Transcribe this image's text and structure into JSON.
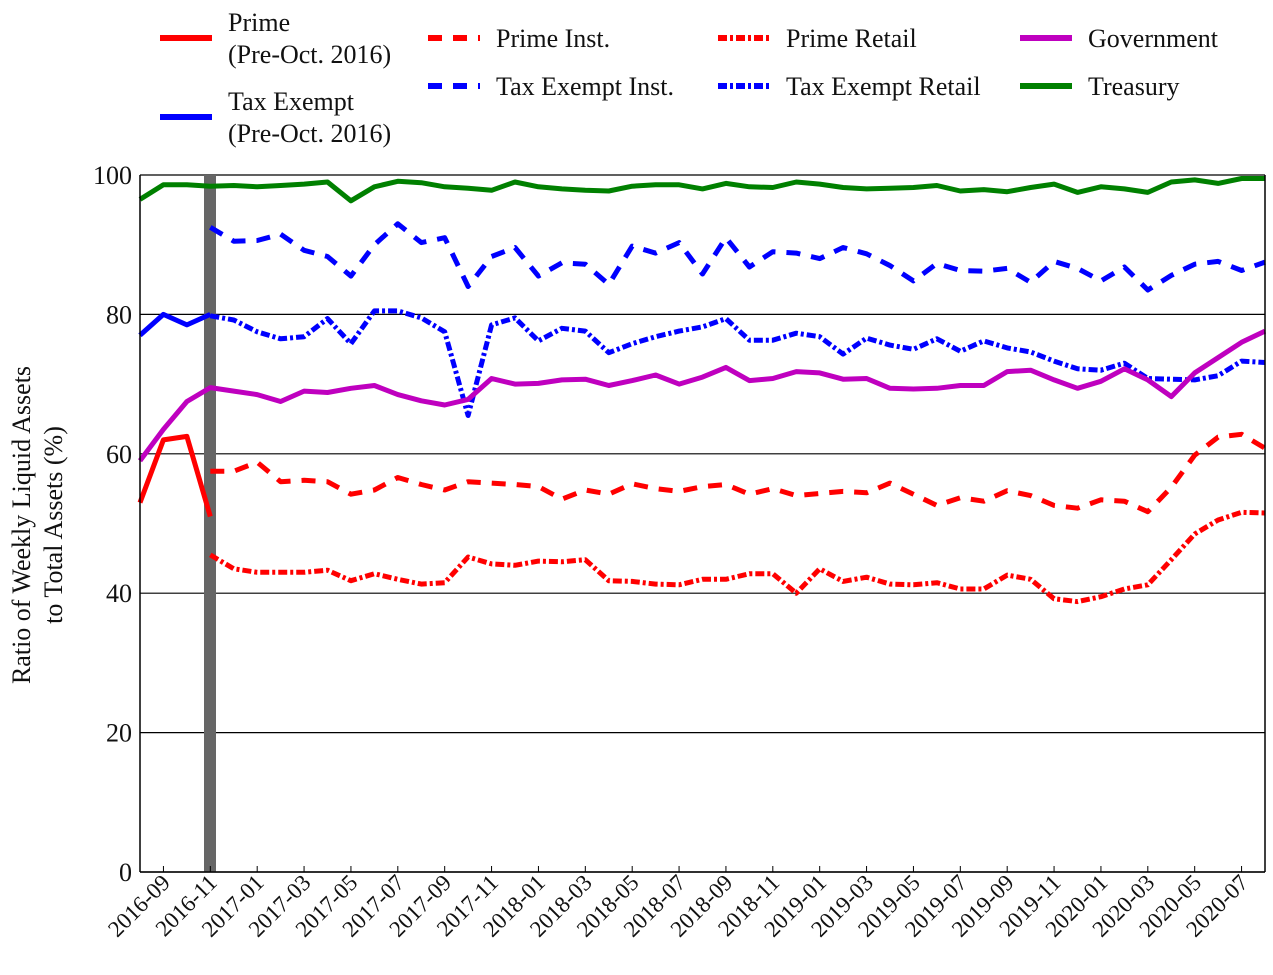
{
  "chart_data": {
    "type": "line",
    "ylabel": "Ratio of Weekly Liquid Assets\nto Total Assets (%)",
    "categories": [
      null,
      "2016-09",
      null,
      "2016-11",
      null,
      "2017-01",
      null,
      "2017-03",
      null,
      "2017-05",
      null,
      "2017-07",
      null,
      "2017-09",
      null,
      "2017-11",
      null,
      "2018-01",
      null,
      "2018-03",
      null,
      "2018-05",
      null,
      "2018-07",
      null,
      "2018-09",
      null,
      "2018-11",
      null,
      "2019-01",
      null,
      "2019-03",
      null,
      "2019-05",
      null,
      "2019-07",
      null,
      "2019-09",
      null,
      "2019-11",
      null,
      "2020-01",
      null,
      "2020-03",
      null,
      "2020-05",
      null,
      "2020-07",
      null
    ],
    "ylim": [
      0,
      100
    ],
    "yticks": [
      0,
      20,
      40,
      60,
      80,
      100
    ],
    "grid": true,
    "series": [
      {
        "name": "Prime\n(Pre-Oct. 2016)",
        "color": "#ff0000",
        "dash": "solid",
        "values": [
          53,
          62,
          62.5,
          51,
          null,
          null,
          null,
          null,
          null,
          null,
          null,
          null,
          null,
          null,
          null,
          null,
          null,
          null,
          null,
          null,
          null,
          null,
          null,
          null,
          null,
          null,
          null,
          null,
          null,
          null,
          null,
          null,
          null,
          null,
          null,
          null,
          null,
          null,
          null,
          null,
          null,
          null,
          null,
          null,
          null,
          null,
          null,
          null,
          null
        ]
      },
      {
        "name": "Tax Exempt\n(Pre-Oct. 2016)",
        "color": "#0000ff",
        "dash": "solid",
        "values": [
          77,
          80,
          78.5,
          80,
          null,
          null,
          null,
          null,
          null,
          null,
          null,
          null,
          null,
          null,
          null,
          null,
          null,
          null,
          null,
          null,
          null,
          null,
          null,
          null,
          null,
          null,
          null,
          null,
          null,
          null,
          null,
          null,
          null,
          null,
          null,
          null,
          null,
          null,
          null,
          null,
          null,
          null,
          null,
          null,
          null,
          null,
          null,
          null,
          null
        ]
      },
      {
        "name": "Prime Inst.",
        "color": "#ff0000",
        "dash": "dashed",
        "values": [
          null,
          null,
          null,
          57.5,
          57.5,
          58.8,
          56,
          56.2,
          56,
          54.2,
          54.8,
          56.6,
          55.6,
          54.8,
          56,
          55.8,
          55.6,
          55.3,
          53.5,
          54.8,
          54.2,
          55.7,
          55,
          54.6,
          55.3,
          55.6,
          54.2,
          55,
          54,
          54.3,
          54.6,
          54.4,
          55.8,
          54.2,
          52.6,
          53.7,
          53.2,
          54.7,
          54,
          52.6,
          52.2,
          53.4,
          53.2,
          51.7,
          55.2,
          59.8,
          62.4,
          62.8,
          60.8
        ]
      },
      {
        "name": "Tax Exempt Inst.",
        "color": "#0000ff",
        "dash": "dashed",
        "values": [
          null,
          null,
          null,
          92.5,
          90.5,
          90.6,
          91.5,
          89.2,
          88.3,
          85.5,
          90,
          93,
          90.3,
          91,
          84,
          88.3,
          89.6,
          85.5,
          87.4,
          87.2,
          84.3,
          89.8,
          88.8,
          90.3,
          85.8,
          91,
          86.8,
          89,
          88.8,
          88,
          89.6,
          88.7,
          87,
          84.8,
          87.3,
          86.3,
          86.2,
          86.6,
          84.6,
          87.6,
          86.6,
          84.8,
          86.8,
          83.5,
          85.6,
          87.2,
          87.6,
          86.3,
          87.5
        ]
      },
      {
        "name": "Prime Retail",
        "color": "#ff0000",
        "dash": "dashdot",
        "values": [
          null,
          null,
          null,
          45.5,
          43.5,
          43,
          43,
          43,
          43.3,
          41.8,
          42.8,
          42,
          41.3,
          41.5,
          45.2,
          44.2,
          44,
          44.6,
          44.5,
          44.8,
          41.8,
          41.7,
          41.3,
          41.2,
          42,
          42,
          42.8,
          42.8,
          40,
          43.5,
          41.7,
          42.3,
          41.3,
          41.2,
          41.5,
          40.6,
          40.6,
          42.6,
          42,
          39.2,
          38.8,
          39.5,
          40.6,
          41.2,
          44.8,
          48.5,
          50.5,
          51.6,
          51.5
        ]
      },
      {
        "name": "Tax Exempt Retail",
        "color": "#0000ff",
        "dash": "dashdot",
        "values": [
          null,
          null,
          null,
          79.8,
          79.2,
          77.5,
          76.5,
          76.8,
          79.4,
          75.8,
          80.5,
          80.5,
          79.5,
          77.5,
          65.5,
          78.5,
          79.5,
          76.2,
          78,
          77.6,
          74.5,
          75.8,
          76.8,
          77.6,
          78.2,
          79.4,
          76.3,
          76.3,
          77.3,
          76.8,
          74.3,
          76.6,
          75.6,
          75,
          76.5,
          74.7,
          76.2,
          75.2,
          74.6,
          73.3,
          72.2,
          72,
          73,
          70.8,
          70.7,
          70.6,
          71.2,
          73.3,
          73.1
        ]
      },
      {
        "name": "Government",
        "color": "#bf00bf",
        "dash": "solid",
        "values": [
          59,
          63.5,
          67.5,
          69.5,
          69,
          68.5,
          67.5,
          69,
          68.8,
          69.4,
          69.8,
          68.5,
          67.6,
          67,
          67.8,
          70.8,
          70,
          70.1,
          70.6,
          70.7,
          69.8,
          70.5,
          71.3,
          70,
          71,
          72.4,
          70.5,
          70.8,
          71.8,
          71.6,
          70.7,
          70.8,
          69.4,
          69.3,
          69.4,
          69.8,
          69.8,
          71.8,
          72,
          70.6,
          69.4,
          70.4,
          72.2,
          70.6,
          68.2,
          71.6,
          73.8,
          76,
          77.6
        ]
      },
      {
        "name": "Treasury",
        "color": "#008000",
        "dash": "solid",
        "values": [
          96.5,
          98.6,
          98.6,
          98.4,
          98.5,
          98.3,
          98.5,
          98.7,
          99.0,
          96.3,
          98.3,
          99.1,
          98.9,
          98.3,
          98.1,
          97.8,
          99.0,
          98.3,
          98.0,
          97.8,
          97.7,
          98.4,
          98.6,
          98.6,
          98.0,
          98.8,
          98.3,
          98.2,
          99.0,
          98.7,
          98.2,
          98.0,
          98.1,
          98.2,
          98.5,
          97.7,
          97.9,
          97.6,
          98.2,
          98.7,
          97.5,
          98.3,
          98.0,
          97.5,
          99.0,
          99.3,
          98.8,
          99.5,
          99.5
        ]
      }
    ]
  }
}
